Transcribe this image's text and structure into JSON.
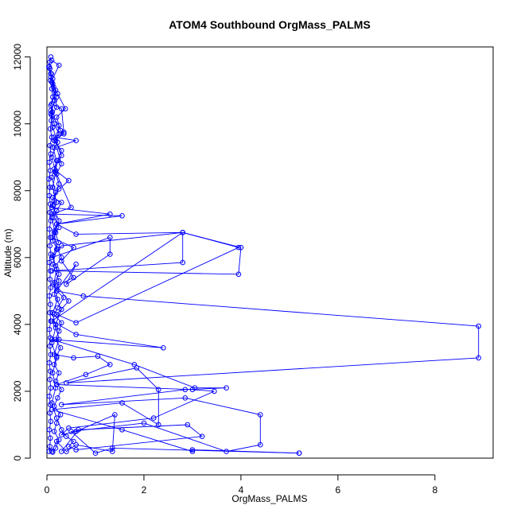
{
  "chart_data": {
    "type": "line",
    "title": "ATOM4 Southbound OrgMass_PALMS",
    "xlabel": "OrgMass_PALMS",
    "ylabel": "Altitude (m)",
    "xlim": [
      0,
      9.2
    ],
    "ylim": [
      0,
      12300
    ],
    "xticks": [
      0,
      2,
      4,
      6,
      8
    ],
    "yticks": [
      0,
      2000,
      4000,
      6000,
      8000,
      10000,
      12000
    ],
    "grid": false,
    "legend": "none",
    "marker": "open-circle",
    "series_color": "#0000FF",
    "series": [
      {
        "values": [
          [
            0.08,
            12000
          ],
          [
            0.06,
            11850
          ],
          [
            0.05,
            11700
          ],
          [
            0.09,
            11500
          ],
          [
            0.07,
            11300
          ],
          [
            0.1,
            11050
          ],
          [
            0.12,
            10800
          ],
          [
            0.08,
            10550
          ],
          [
            0.11,
            10350
          ],
          [
            0.09,
            10100
          ],
          [
            0.07,
            9850
          ],
          [
            0.1,
            9600
          ],
          [
            0.06,
            9350
          ],
          [
            0.08,
            9100
          ],
          [
            0.05,
            8850
          ],
          [
            0.07,
            8600
          ],
          [
            0.04,
            8350
          ],
          [
            0.06,
            8100
          ],
          [
            0.05,
            7850
          ],
          [
            0.07,
            7600
          ],
          [
            0.06,
            7350
          ],
          [
            0.08,
            7100
          ],
          [
            0.05,
            6850
          ],
          [
            0.07,
            6600
          ],
          [
            0.06,
            6350
          ],
          [
            0.08,
            6100
          ],
          [
            0.05,
            5850
          ],
          [
            0.07,
            5600
          ],
          [
            0.06,
            5350
          ],
          [
            0.08,
            5100
          ],
          [
            0.05,
            4850
          ],
          [
            0.07,
            4600
          ],
          [
            0.06,
            4350
          ],
          [
            0.08,
            4100
          ],
          [
            0.05,
            3850
          ],
          [
            0.07,
            3600
          ],
          [
            0.06,
            3350
          ],
          [
            0.08,
            3100
          ],
          [
            0.05,
            2850
          ],
          [
            0.07,
            2600
          ],
          [
            0.06,
            2350
          ],
          [
            0.08,
            2100
          ],
          [
            0.05,
            1850
          ],
          [
            0.07,
            1600
          ],
          [
            0.06,
            1350
          ],
          [
            0.08,
            1100
          ],
          [
            0.05,
            850
          ],
          [
            0.07,
            600
          ],
          [
            0.06,
            350
          ],
          [
            0.05,
            200
          ]
        ]
      },
      {
        "values": [
          [
            0.04,
            11700
          ],
          [
            0.12,
            11200
          ],
          [
            0.22,
            10900
          ],
          [
            0.38,
            10450
          ],
          [
            0.2,
            10200
          ],
          [
            0.28,
            9800
          ],
          [
            0.35,
            9700
          ],
          [
            0.15,
            9500
          ],
          [
            0.3,
            9200
          ],
          [
            0.22,
            8900
          ],
          [
            0.18,
            8600
          ],
          [
            0.45,
            8300
          ],
          [
            0.25,
            8050
          ],
          [
            0.12,
            7800
          ],
          [
            0.3,
            7650
          ],
          [
            0.2,
            7400
          ],
          [
            0.15,
            7200
          ],
          [
            0.25,
            6900
          ],
          [
            0.18,
            6750
          ],
          [
            0.12,
            6500
          ],
          [
            0.22,
            6250
          ],
          [
            0.3,
            6000
          ],
          [
            0.18,
            5750
          ],
          [
            0.25,
            5500
          ],
          [
            0.15,
            5250
          ],
          [
            0.2,
            5000
          ],
          [
            0.35,
            4800
          ],
          [
            0.22,
            4500
          ],
          [
            0.15,
            4300
          ],
          [
            0.3,
            4050
          ],
          [
            0.25,
            3800
          ],
          [
            0.18,
            3550
          ],
          [
            0.28,
            3300
          ],
          [
            0.2,
            3050
          ],
          [
            0.15,
            2800
          ],
          [
            0.25,
            2550
          ],
          [
            0.18,
            2300
          ],
          [
            0.3,
            2050
          ],
          [
            0.22,
            1800
          ],
          [
            0.15,
            1550
          ],
          [
            0.28,
            1300
          ],
          [
            0.2,
            1050
          ],
          [
            0.15,
            800
          ],
          [
            0.25,
            550
          ],
          [
            0.18,
            300
          ],
          [
            0.12,
            180
          ]
        ]
      },
      {
        "values": [
          [
            0.08,
            11400
          ],
          [
            0.18,
            11000
          ],
          [
            0.1,
            10600
          ],
          [
            0.3,
            10450
          ],
          [
            0.35,
            9750
          ],
          [
            0.15,
            9600
          ],
          [
            0.6,
            9500
          ],
          [
            0.2,
            9300
          ],
          [
            0.3,
            8800
          ],
          [
            0.2,
            8500
          ],
          [
            0.5,
            7500
          ],
          [
            0.1,
            7300
          ],
          [
            1.55,
            7250
          ],
          [
            0.2,
            7000
          ],
          [
            0.6,
            6700
          ],
          [
            2.8,
            6750
          ],
          [
            2.8,
            5850
          ],
          [
            0.1,
            5600
          ],
          [
            3.95,
            5500
          ],
          [
            4.0,
            6300
          ],
          [
            2.8,
            6750
          ],
          [
            0.3,
            6350
          ],
          [
            0.1,
            6000
          ],
          [
            1.3,
            6600
          ],
          [
            1.3,
            6100
          ],
          [
            0.4,
            5200
          ],
          [
            0.6,
            5800
          ],
          [
            0.2,
            5000
          ],
          [
            0.75,
            4850
          ],
          [
            8.9,
            3950
          ],
          [
            8.9,
            3000
          ],
          [
            0.4,
            2250
          ],
          [
            1.85,
            2700
          ],
          [
            2.3,
            2050
          ],
          [
            2.3,
            1000
          ],
          [
            1.55,
            1650
          ],
          [
            0.1,
            1450
          ],
          [
            1.55,
            850
          ],
          [
            3.0,
            200
          ],
          [
            3.0,
            250
          ],
          [
            5.2,
            150
          ]
        ]
      },
      {
        "values": [
          [
            0.08,
            11500
          ],
          [
            0.14,
            11100
          ],
          [
            0.2,
            10500
          ],
          [
            0.1,
            10250
          ],
          [
            0.25,
            9950
          ],
          [
            0.18,
            9500
          ],
          [
            0.3,
            9050
          ],
          [
            0.15,
            8650
          ],
          [
            0.25,
            8200
          ],
          [
            0.15,
            7700
          ],
          [
            0.1,
            7500
          ],
          [
            1.3,
            7300
          ],
          [
            0.2,
            7000
          ],
          [
            0.1,
            6600
          ],
          [
            0.55,
            6300
          ],
          [
            0.3,
            5900
          ],
          [
            0.55,
            5400
          ],
          [
            0.2,
            5150
          ],
          [
            0.45,
            4700
          ],
          [
            0.2,
            4300
          ],
          [
            0.6,
            4050
          ],
          [
            3.95,
            6300
          ],
          [
            2.8,
            6750
          ],
          [
            0.1,
            4100
          ],
          [
            0.6,
            3700
          ],
          [
            2.4,
            3300
          ],
          [
            0.1,
            3550
          ],
          [
            1.8,
            2800
          ],
          [
            3.05,
            2100
          ],
          [
            3.7,
            2100
          ],
          [
            2.85,
            2050
          ],
          [
            0.3,
            1600
          ],
          [
            2.85,
            1800
          ],
          [
            4.4,
            1300
          ],
          [
            4.4,
            400
          ],
          [
            3.7,
            200
          ],
          [
            2.0,
            1050
          ],
          [
            0.5,
            800
          ],
          [
            1.0,
            150
          ],
          [
            1.35,
            300
          ],
          [
            5.2,
            150
          ]
        ]
      },
      {
        "values": [
          [
            0.1,
            11900
          ],
          [
            0.25,
            11750
          ],
          [
            0.12,
            11350
          ],
          [
            0.2,
            10800
          ],
          [
            0.08,
            10400
          ],
          [
            0.15,
            10000
          ],
          [
            0.25,
            9700
          ],
          [
            0.12,
            9300
          ],
          [
            0.2,
            8900
          ],
          [
            0.1,
            8400
          ],
          [
            0.18,
            7950
          ],
          [
            0.12,
            7550
          ],
          [
            0.25,
            7100
          ],
          [
            0.15,
            6750
          ],
          [
            0.2,
            6250
          ],
          [
            0.12,
            5800
          ],
          [
            0.25,
            5300
          ],
          [
            0.15,
            4900
          ],
          [
            0.3,
            4450
          ],
          [
            0.18,
            4000
          ],
          [
            0.25,
            3550
          ],
          [
            0.15,
            3100
          ],
          [
            0.55,
            3000
          ],
          [
            1.05,
            3050
          ],
          [
            1.3,
            2800
          ],
          [
            0.8,
            2500
          ],
          [
            0.2,
            2200
          ],
          [
            3.0,
            2050
          ],
          [
            3.45,
            2000
          ],
          [
            2.2,
            1200
          ],
          [
            0.45,
            900
          ],
          [
            0.3,
            700
          ],
          [
            0.6,
            800
          ],
          [
            1.4,
            1300
          ],
          [
            1.35,
            200
          ],
          [
            0.6,
            400
          ],
          [
            0.4,
            200
          ],
          [
            0.2,
            500
          ],
          [
            0.1,
            200
          ]
        ]
      },
      {
        "values": [
          [
            0.06,
            11650
          ],
          [
            0.1,
            11250
          ],
          [
            0.16,
            10700
          ],
          [
            0.08,
            10300
          ],
          [
            0.12,
            9900
          ],
          [
            0.22,
            9450
          ],
          [
            0.1,
            9000
          ],
          [
            0.18,
            8550
          ],
          [
            0.12,
            8100
          ],
          [
            0.2,
            7650
          ],
          [
            0.1,
            7200
          ],
          [
            0.16,
            6800
          ],
          [
            0.24,
            6450
          ],
          [
            0.12,
            6050
          ],
          [
            0.2,
            5650
          ],
          [
            0.14,
            5200
          ],
          [
            0.22,
            4750
          ],
          [
            0.12,
            4350
          ],
          [
            0.18,
            3900
          ],
          [
            0.1,
            3450
          ],
          [
            0.2,
            3000
          ],
          [
            0.12,
            2550
          ],
          [
            0.18,
            2100
          ],
          [
            0.1,
            1650
          ],
          [
            0.2,
            1200
          ],
          [
            0.3,
            850
          ],
          [
            0.4,
            650
          ],
          [
            0.55,
            500
          ],
          [
            0.45,
            350
          ],
          [
            0.6,
            250
          ],
          [
            3.2,
            650
          ],
          [
            2.9,
            1000
          ],
          [
            0.65,
            850
          ],
          [
            0.3,
            200
          ]
        ]
      }
    ]
  }
}
